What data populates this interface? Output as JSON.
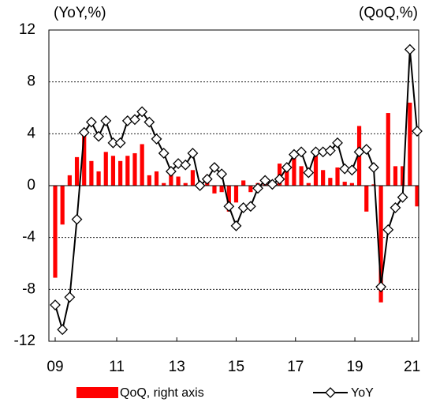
{
  "chart_data": {
    "type": "bar-line",
    "ylabel": "(YoY,%)",
    "y2label": "(QoQ,%)",
    "categories": [
      null,
      null,
      null,
      null,
      null,
      null,
      null,
      null,
      null,
      null,
      null,
      null,
      null,
      null,
      null,
      null,
      null,
      null,
      null,
      null,
      null,
      null,
      null,
      null,
      null,
      null,
      null,
      null,
      null,
      null,
      null,
      null,
      null,
      null,
      null,
      null,
      null,
      null,
      null,
      null,
      null,
      null,
      null,
      null,
      null,
      null,
      null,
      null,
      null,
      null,
      null
    ],
    "xticks": [
      {
        "value": 0,
        "label": "09"
      },
      {
        "value": 8.5,
        "label": "11"
      },
      {
        "value": 16.8,
        "label": "13"
      },
      {
        "value": 25,
        "label": "15"
      },
      {
        "value": 33.2,
        "label": "17"
      },
      {
        "value": 41.4,
        "label": "19"
      },
      {
        "value": 49.3,
        "label": "21"
      }
    ],
    "ylim": [
      -12,
      12
    ],
    "yticks": [
      -12,
      -8,
      -4,
      0,
      4,
      8,
      12
    ],
    "y2lim": [
      -12,
      12
    ],
    "grid": true,
    "legend": "bottom",
    "series": [
      {
        "name": "QoQ, right axis",
        "type": "bar",
        "axis": "y2",
        "color": "#ff0000",
        "values": [
          -7.1,
          -3.0,
          0.8,
          2.2,
          4.0,
          1.9,
          1.1,
          2.6,
          2.3,
          1.9,
          2.3,
          2.5,
          3.2,
          0.8,
          1.1,
          0.2,
          1.3,
          0.7,
          0.2,
          1.2,
          -0.2,
          0.8,
          -0.6,
          -0.5,
          -2.0,
          -1.3,
          0.4,
          -0.5,
          0.2,
          0.3,
          0.2,
          1.7,
          1.3,
          2.3,
          1.5,
          0.2,
          2.3,
          1.2,
          0.6,
          1.4,
          0.3,
          0.2,
          4.6,
          -2.0,
          0.1,
          -9.0,
          5.6,
          1.5,
          1.5,
          6.4,
          -1.6
        ]
      },
      {
        "name": "YoY",
        "type": "line",
        "color": "#000000",
        "values": [
          -9.2,
          -11.1,
          -8.6,
          -2.6,
          4.1,
          4.9,
          3.8,
          5.0,
          3.3,
          3.3,
          5.0,
          5.1,
          5.7,
          4.9,
          3.6,
          2.5,
          1.1,
          1.7,
          1.6,
          2.5,
          0.0,
          0.5,
          1.4,
          0.9,
          -1.6,
          -3.1,
          -1.7,
          -1.6,
          -0.2,
          0.4,
          0.1,
          0.5,
          1.4,
          2.4,
          2.6,
          1.0,
          2.6,
          2.6,
          2.7,
          3.3,
          1.3,
          1.2,
          2.6,
          2.8,
          1.4,
          -7.8,
          -3.4,
          -1.7,
          -0.9,
          10.5,
          4.2
        ]
      }
    ]
  }
}
